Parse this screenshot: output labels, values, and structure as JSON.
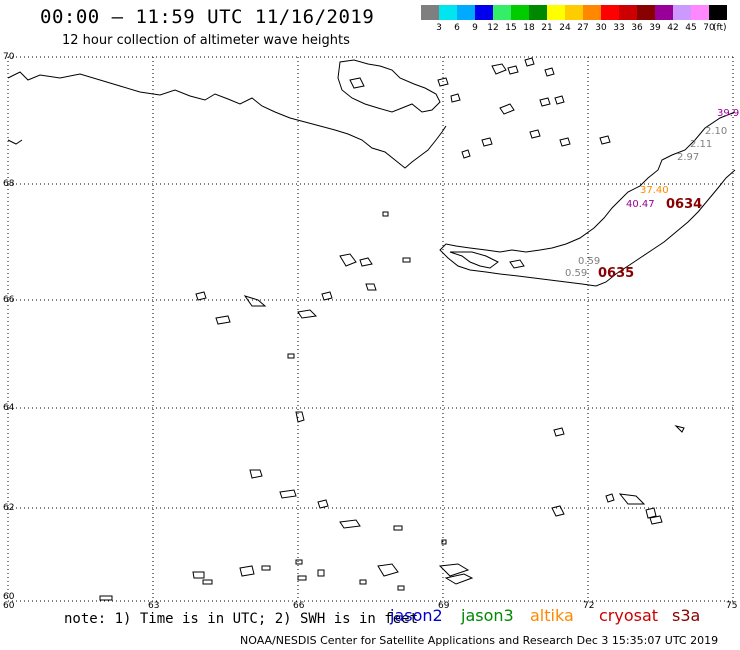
{
  "header": {
    "title": "00:00 – 11:59 UTC 11/16/2019",
    "subtitle": "12 hour collection of altimeter wave heights"
  },
  "legend": {
    "unit": "(ft)",
    "items": [
      {
        "label": "3",
        "color": "#7f7f7f"
      },
      {
        "label": "6",
        "color": "#00e5ee"
      },
      {
        "label": "9",
        "color": "#00aaff"
      },
      {
        "label": "12",
        "color": "#0000ee"
      },
      {
        "label": "15",
        "color": "#33ee66"
      },
      {
        "label": "18",
        "color": "#00cc00"
      },
      {
        "label": "21",
        "color": "#008800"
      },
      {
        "label": "24",
        "color": "#ffff00"
      },
      {
        "label": "27",
        "color": "#ffcc00"
      },
      {
        "label": "30",
        "color": "#ff8800"
      },
      {
        "label": "33",
        "color": "#ff0000"
      },
      {
        "label": "36",
        "color": "#cc0000"
      },
      {
        "label": "39",
        "color": "#880000"
      },
      {
        "label": "42",
        "color": "#990099"
      },
      {
        "label": "45",
        "color": "#cc99ff"
      },
      {
        "label": "70",
        "color": "#ff88ff"
      },
      {
        "label": "",
        "color": "#000000"
      }
    ]
  },
  "axes": {
    "lat_labels": [
      "70",
      "68",
      "66",
      "64",
      "62",
      "60"
    ],
    "lon_labels": [
      "60",
      "63",
      "66",
      "69",
      "72",
      "75"
    ]
  },
  "observations": [
    {
      "text": "39.9",
      "color": "#990099"
    },
    {
      "text": "2.10",
      "color": "#7f7f7f"
    },
    {
      "text": "2.11",
      "color": "#7f7f7f"
    },
    {
      "text": "2.97",
      "color": "#7f7f7f"
    },
    {
      "text": "37.40",
      "color": "#ff8800"
    },
    {
      "text": "40.47",
      "color": "#990099"
    },
    {
      "text": "0634",
      "color": "#880000"
    },
    {
      "text": "0.59",
      "color": "#7f7f7f"
    },
    {
      "text": "0.59",
      "color": "#7f7f7f"
    },
    {
      "text": "0635",
      "color": "#880000"
    }
  ],
  "footer": {
    "note": "note: 1) Time is in UTC; 2) SWH is in feet",
    "satellites": [
      {
        "name": "jason2",
        "color": "#0000cc"
      },
      {
        "name": "jason3",
        "color": "#008800"
      },
      {
        "name": "altika",
        "color": "#ff8800"
      },
      {
        "name": "cryosat",
        "color": "#cc0000"
      },
      {
        "name": "s3a",
        "color": "#880000"
      }
    ],
    "credit": "NOAA/NESDIS Center for Satellite Applications and Research   Dec  3 15:35:07 UTC 2019"
  }
}
